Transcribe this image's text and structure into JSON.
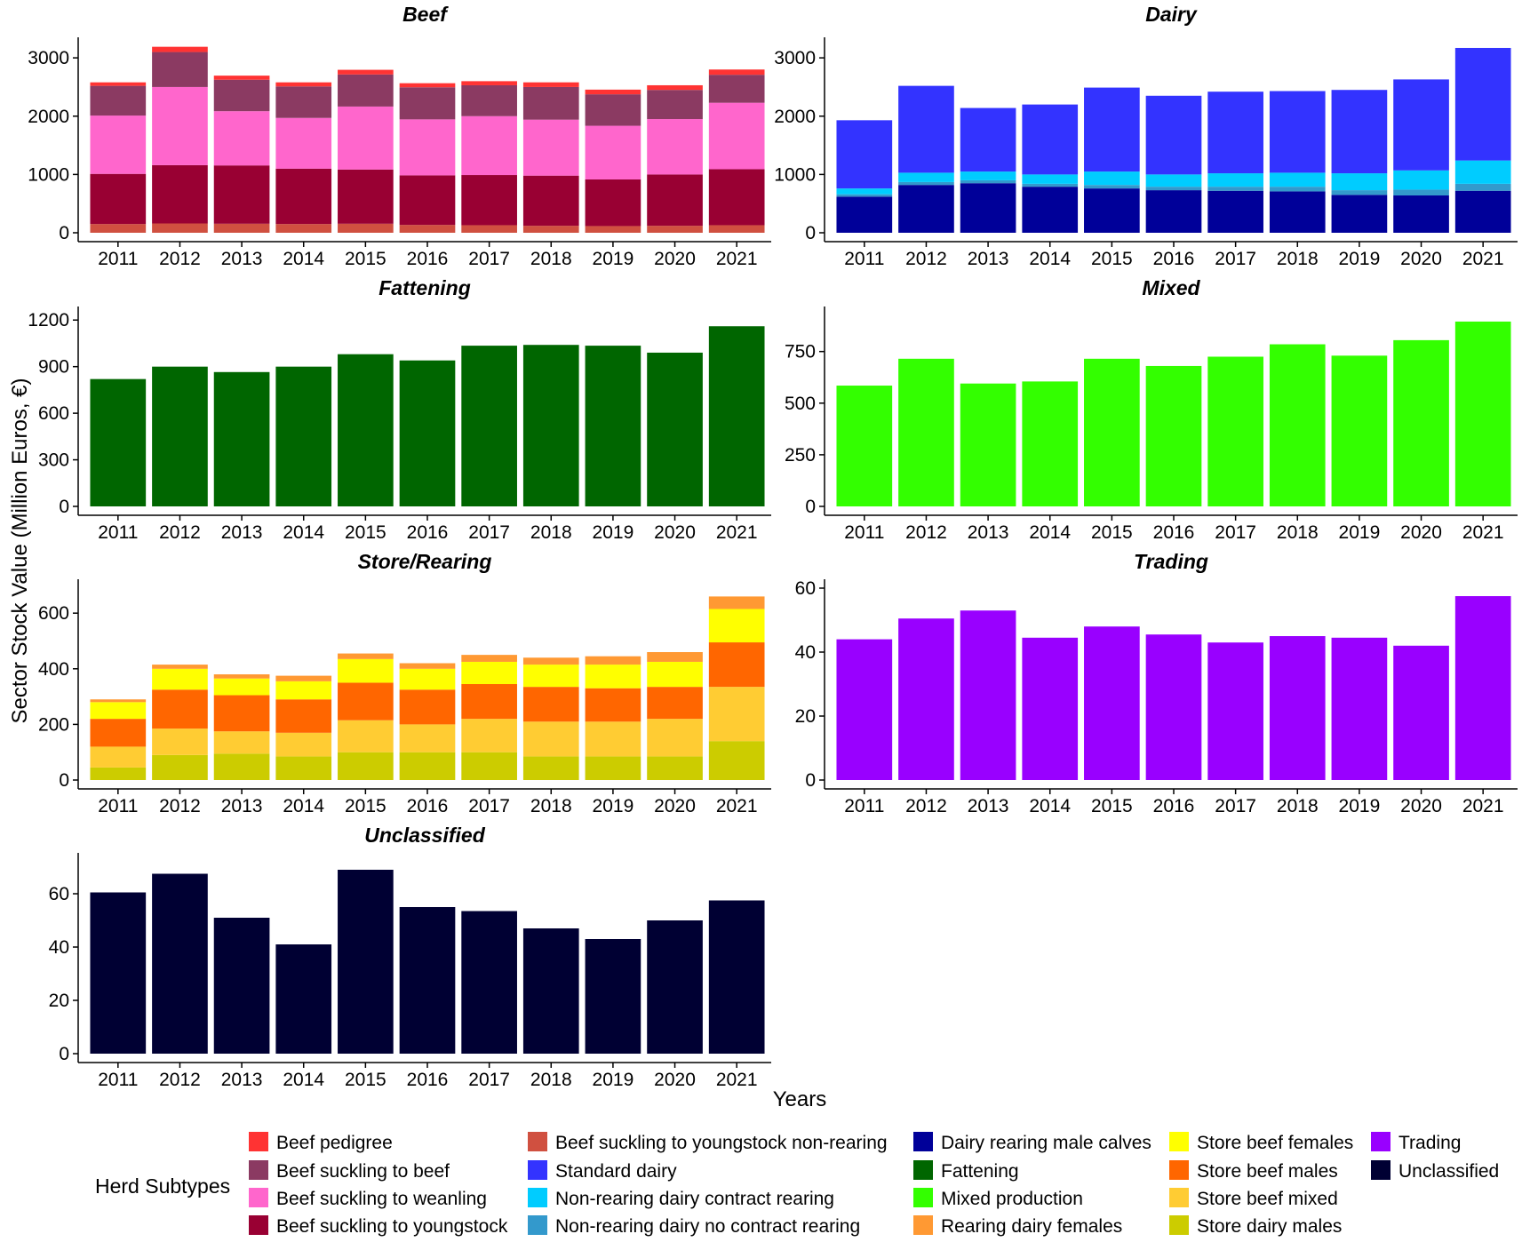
{
  "axes": {
    "ylabel": "Sector Stock Value (Million Euros, €)",
    "xlabel": "Years"
  },
  "legend": {
    "title": "Herd Subtypes",
    "position": "bottom",
    "items": [
      {
        "label": "Beef pedigree",
        "color": "#FF3333"
      },
      {
        "label": "Beef suckling to beef",
        "color": "#8B3A62"
      },
      {
        "label": "Beef suckling to weanling",
        "color": "#FF66CC"
      },
      {
        "label": "Beef suckling to youngstock",
        "color": "#990033"
      },
      {
        "label": "Beef suckling to youngstock non-rearing",
        "color": "#D05040"
      },
      {
        "label": "Standard dairy",
        "color": "#3333FF"
      },
      {
        "label": "Non-rearing dairy contract rearing",
        "color": "#00CCFF"
      },
      {
        "label": "Non-rearing dairy no contract rearing",
        "color": "#3399CC"
      },
      {
        "label": "Dairy rearing male calves",
        "color": "#000099"
      },
      {
        "label": "Fattening",
        "color": "#006600"
      },
      {
        "label": "Mixed production",
        "color": "#33FF00"
      },
      {
        "label": "Rearing dairy females",
        "color": "#FF9933"
      },
      {
        "label": "Store beef females",
        "color": "#FFFF00"
      },
      {
        "label": "Store beef males",
        "color": "#FF6600"
      },
      {
        "label": "Store beef mixed",
        "color": "#FFCC33"
      },
      {
        "label": "Store dairy males",
        "color": "#CCCC00"
      },
      {
        "label": "Trading",
        "color": "#9900FF"
      },
      {
        "label": "Unclassified",
        "color": "#000033"
      }
    ]
  },
  "chart_data": [
    {
      "type": "bar",
      "stacked": true,
      "title": "Beef",
      "categories": [
        "2011",
        "2012",
        "2013",
        "2014",
        "2015",
        "2016",
        "2017",
        "2018",
        "2019",
        "2020",
        "2021"
      ],
      "ylim": [
        0,
        3200
      ],
      "yticks": [
        "0",
        "1000",
        "2000",
        "3000"
      ],
      "yticks_values": [
        0,
        1000,
        2000,
        3000
      ],
      "series": [
        {
          "name": "Beef suckling to youngstock non-rearing",
          "color": "#D05040",
          "values": [
            150,
            160,
            155,
            150,
            155,
            135,
            130,
            120,
            115,
            120,
            130
          ]
        },
        {
          "name": "Beef suckling to youngstock",
          "color": "#990033",
          "values": [
            860,
            1000,
            1000,
            950,
            930,
            850,
            860,
            860,
            800,
            880,
            960
          ]
        },
        {
          "name": "Beef suckling to weanling",
          "color": "#FF66CC",
          "values": [
            1000,
            1340,
            930,
            870,
            1080,
            960,
            1010,
            960,
            920,
            950,
            1140
          ]
        },
        {
          "name": "Beef suckling to beef",
          "color": "#8B3A62",
          "values": [
            510,
            600,
            540,
            540,
            550,
            550,
            530,
            560,
            540,
            500,
            480
          ]
        },
        {
          "name": "Beef pedigree",
          "color": "#FF3333",
          "values": [
            60,
            90,
            70,
            70,
            80,
            70,
            70,
            80,
            80,
            80,
            90
          ]
        }
      ]
    },
    {
      "type": "bar",
      "stacked": true,
      "title": "Dairy",
      "categories": [
        "2011",
        "2012",
        "2013",
        "2014",
        "2015",
        "2016",
        "2017",
        "2018",
        "2019",
        "2020",
        "2021"
      ],
      "ylim": [
        0,
        3200
      ],
      "yticks": [
        "0",
        "1000",
        "2000",
        "3000"
      ],
      "yticks_values": [
        0,
        1000,
        2000,
        3000
      ],
      "series": [
        {
          "name": "Dairy rearing male calves",
          "color": "#000099",
          "values": [
            620,
            820,
            850,
            790,
            760,
            730,
            720,
            710,
            650,
            640,
            720
          ]
        },
        {
          "name": "Non-rearing dairy no contract rearing",
          "color": "#3399CC",
          "values": [
            40,
            50,
            50,
            50,
            60,
            60,
            70,
            80,
            80,
            100,
            120
          ]
        },
        {
          "name": "Non-rearing dairy contract rearing",
          "color": "#00CCFF",
          "values": [
            100,
            160,
            150,
            160,
            230,
            210,
            230,
            240,
            290,
            330,
            400
          ]
        },
        {
          "name": "Standard dairy",
          "color": "#3333FF",
          "values": [
            1170,
            1490,
            1090,
            1200,
            1440,
            1350,
            1400,
            1400,
            1430,
            1560,
            1930
          ]
        }
      ]
    },
    {
      "type": "bar",
      "stacked": false,
      "title": "Fattening",
      "categories": [
        "2011",
        "2012",
        "2013",
        "2014",
        "2015",
        "2016",
        "2017",
        "2018",
        "2019",
        "2020",
        "2021"
      ],
      "ylim": [
        0,
        1230
      ],
      "yticks": [
        "0",
        "300",
        "600",
        "900",
        "1200"
      ],
      "yticks_values": [
        0,
        300,
        600,
        900,
        1200
      ],
      "series": [
        {
          "name": "Fattening",
          "color": "#006600",
          "values": [
            820,
            900,
            865,
            900,
            980,
            940,
            1035,
            1040,
            1035,
            990,
            1160
          ]
        }
      ]
    },
    {
      "type": "bar",
      "stacked": false,
      "title": "Mixed",
      "categories": [
        "2011",
        "2012",
        "2013",
        "2014",
        "2015",
        "2016",
        "2017",
        "2018",
        "2019",
        "2020",
        "2021"
      ],
      "ylim": [
        0,
        925
      ],
      "yticks": [
        "0",
        "250",
        "500",
        "750"
      ],
      "yticks_values": [
        0,
        250,
        500,
        750
      ],
      "series": [
        {
          "name": "Mixed production",
          "color": "#33FF00",
          "values": [
            585,
            715,
            595,
            605,
            715,
            680,
            725,
            785,
            730,
            805,
            895
          ]
        }
      ]
    },
    {
      "type": "bar",
      "stacked": true,
      "title": "Store/Rearing",
      "categories": [
        "2011",
        "2012",
        "2013",
        "2014",
        "2015",
        "2016",
        "2017",
        "2018",
        "2019",
        "2020",
        "2021"
      ],
      "ylim": [
        0,
        690
      ],
      "yticks": [
        "0",
        "200",
        "400",
        "600"
      ],
      "yticks_values": [
        0,
        200,
        400,
        600
      ],
      "series": [
        {
          "name": "Store dairy males",
          "color": "#CCCC00",
          "values": [
            45,
            90,
            95,
            85,
            100,
            100,
            100,
            85,
            85,
            85,
            140
          ]
        },
        {
          "name": "Store beef mixed",
          "color": "#FFCC33",
          "values": [
            75,
            95,
            80,
            85,
            115,
            100,
            120,
            125,
            125,
            135,
            195
          ]
        },
        {
          "name": "Store beef males",
          "color": "#FF6600",
          "values": [
            100,
            140,
            130,
            120,
            135,
            125,
            125,
            125,
            120,
            115,
            160
          ]
        },
        {
          "name": "Store beef females",
          "color": "#FFFF00",
          "values": [
            60,
            75,
            60,
            65,
            85,
            75,
            80,
            80,
            85,
            90,
            120
          ]
        },
        {
          "name": "Rearing dairy females",
          "color": "#FF9933",
          "values": [
            10,
            15,
            15,
            20,
            20,
            20,
            25,
            25,
            30,
            35,
            45
          ]
        }
      ]
    },
    {
      "type": "bar",
      "stacked": false,
      "title": "Trading",
      "categories": [
        "2011",
        "2012",
        "2013",
        "2014",
        "2015",
        "2016",
        "2017",
        "2018",
        "2019",
        "2020",
        "2021"
      ],
      "ylim": [
        0,
        60
      ],
      "yticks": [
        "0",
        "20",
        "40",
        "60"
      ],
      "yticks_values": [
        0,
        20,
        40,
        60
      ],
      "series": [
        {
          "name": "Trading",
          "color": "#9900FF",
          "values": [
            44,
            50.5,
            53,
            44.5,
            48,
            45.5,
            43,
            45,
            44.5,
            42,
            57.5
          ]
        }
      ]
    },
    {
      "type": "bar",
      "stacked": false,
      "title": "Unclassified",
      "categories": [
        "2011",
        "2012",
        "2013",
        "2014",
        "2015",
        "2016",
        "2017",
        "2018",
        "2019",
        "2020",
        "2021"
      ],
      "ylim": [
        0,
        72
      ],
      "yticks": [
        "0",
        "20",
        "40",
        "60"
      ],
      "yticks_values": [
        0,
        20,
        40,
        60
      ],
      "series": [
        {
          "name": "Unclassified",
          "color": "#000033",
          "values": [
            60.5,
            67.5,
            51,
            41,
            69,
            55,
            53.5,
            47,
            43,
            50,
            57.5
          ]
        }
      ]
    }
  ]
}
